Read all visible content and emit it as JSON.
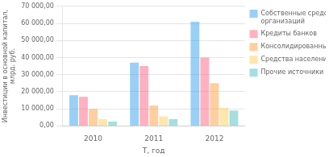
{
  "chart_data": {
    "type": "bar",
    "categories": [
      "2010",
      "2011",
      "2012"
    ],
    "series": [
      {
        "name": "Собственные средства\nорганизаций",
        "values": [
          18000,
          37000,
          61000
        ]
      },
      {
        "name": "Кредиты банков",
        "values": [
          17000,
          35000,
          40000
        ]
      },
      {
        "name": "Консолидированный бюджет",
        "values": [
          10000,
          12000,
          25000
        ]
      },
      {
        "name": "Средства населения",
        "values": [
          4000,
          5500,
          10500
        ]
      },
      {
        "name": "Прочие источники",
        "values": [
          2500,
          4000,
          9000
        ]
      }
    ],
    "xlabel": "Т, год",
    "ylabel": "Инвестиции в основной капитал,\nмлрд. руб.",
    "ylim": [
      0,
      70000
    ],
    "yticks": [
      {
        "value": 0,
        "label": "0,00"
      },
      {
        "value": 10000,
        "label": "10 000,00"
      },
      {
        "value": 20000,
        "label": "20 000,00"
      },
      {
        "value": 30000,
        "label": "30 000,00"
      },
      {
        "value": 40000,
        "label": "40 000,00"
      },
      {
        "value": 50000,
        "label": "50 000,00"
      },
      {
        "value": 60000,
        "label": "60 000,00"
      },
      {
        "value": 70000,
        "label": "70 000,00"
      }
    ],
    "grid": true,
    "legend": "right"
  }
}
